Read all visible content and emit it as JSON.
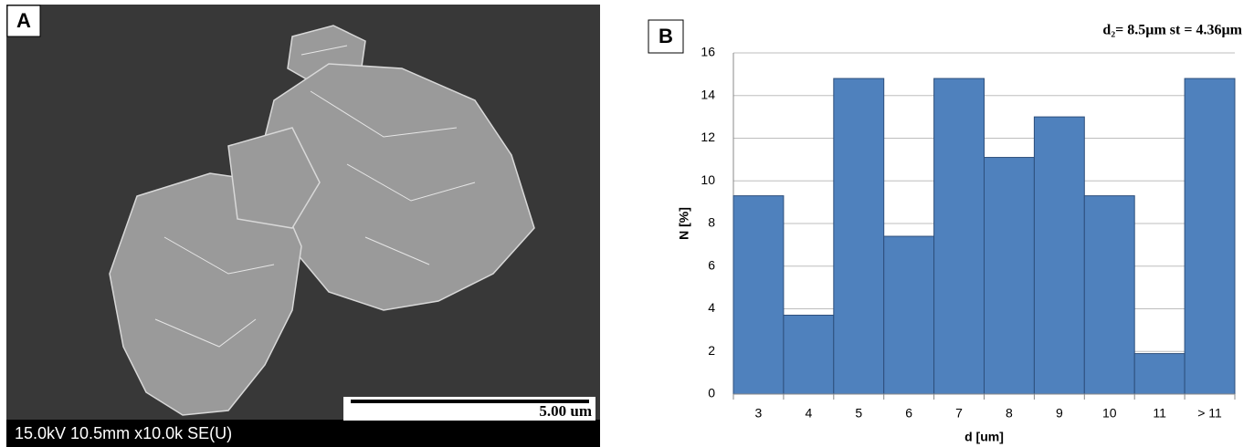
{
  "image_panel": {
    "label": "A",
    "info": "15.0kV 10.5mm x10.0k SE(U)",
    "scale_bar": "5.00 um"
  },
  "chart_data": {
    "type": "bar",
    "panel_label": "B",
    "annotation": "d₂= 8.5µm st = 4.36µm",
    "x_label": "d [um]",
    "y_label": "N [%]",
    "categories": [
      "3",
      "4",
      "5",
      "6",
      "7",
      "8",
      "9",
      "10",
      "11",
      "> 11"
    ],
    "values": [
      9.3,
      3.7,
      14.8,
      7.4,
      14.8,
      11.1,
      13.0,
      9.3,
      1.9,
      14.8
    ],
    "color": "#4f81bd",
    "ylim": [
      0,
      16
    ],
    "yticks": [
      0,
      2,
      4,
      6,
      8,
      10,
      12,
      14,
      16
    ],
    "grid": true
  }
}
